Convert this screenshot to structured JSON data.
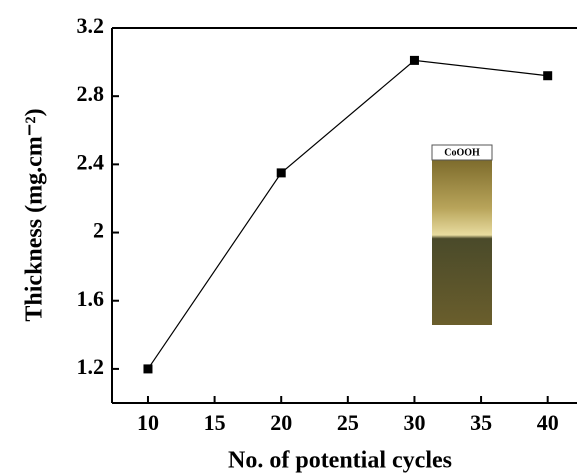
{
  "chart_data": {
    "type": "line",
    "xlabel": "No. of potential cycles",
    "ylabel": "Thickness (mg.cm⁻²)",
    "annotation": "CoOOH",
    "x": [
      10,
      20,
      30,
      40
    ],
    "series": [
      {
        "color": "#000000",
        "values": [
          1.2,
          2.35,
          3.01,
          2.92
        ]
      }
    ],
    "xlim": [
      7.3,
      42.2
    ],
    "xticks": [
      10,
      15,
      20,
      25,
      30,
      35,
      40
    ],
    "ylim": [
      1.0,
      3.2
    ],
    "yticks": [
      1.2,
      1.6,
      2.0,
      2.4,
      2.8,
      3.2
    ]
  }
}
